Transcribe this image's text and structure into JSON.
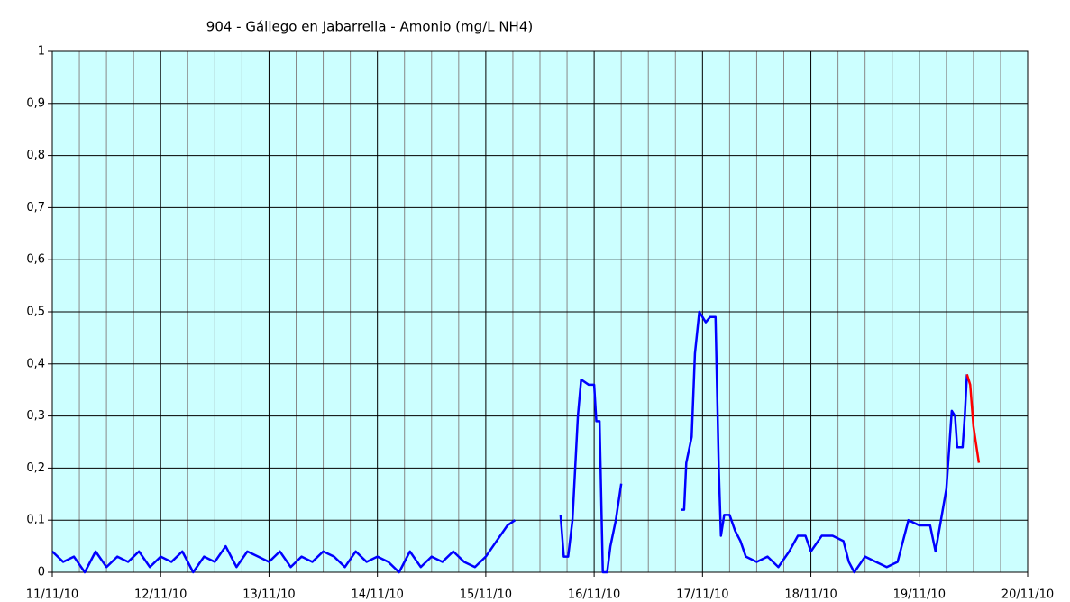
{
  "chart_data": {
    "type": "line",
    "title": "904 - Gállego en Jabarrella - Amonio (mg/L NH4)",
    "xlim": [
      0,
      9
    ],
    "xticks": [
      {
        "value": 0,
        "label": "11/11/10"
      },
      {
        "value": 1,
        "label": "12/11/10"
      },
      {
        "value": 2,
        "label": "13/11/10"
      },
      {
        "value": 3,
        "label": "14/11/10"
      },
      {
        "value": 4,
        "label": "15/11/10"
      },
      {
        "value": 5,
        "label": "16/11/10"
      },
      {
        "value": 6,
        "label": "17/11/10"
      },
      {
        "value": 7,
        "label": "18/11/10"
      },
      {
        "value": 8,
        "label": "19/11/10"
      },
      {
        "value": 9,
        "label": "20/11/10"
      }
    ],
    "ylim": [
      0,
      1
    ],
    "yticks": [
      0,
      {
        "value": 0.1,
        "label": "0,1"
      },
      {
        "value": 0.2,
        "label": "0,2"
      },
      {
        "value": 0.3,
        "label": "0,3"
      },
      {
        "value": 0.4,
        "label": "0,4"
      },
      {
        "value": 0.5,
        "label": "0,5"
      },
      {
        "value": 0.6,
        "label": "0,6"
      },
      {
        "value": 0.7,
        "label": "0,7"
      },
      {
        "value": 0.8,
        "label": "0,8"
      },
      {
        "value": 0.9,
        "label": "0,9"
      },
      1
    ],
    "grid": true,
    "background": "#ccffff",
    "series": [
      {
        "color": "#0000ff",
        "x": [
          0,
          0.1,
          0.2,
          0.3,
          0.4,
          0.5,
          0.6,
          0.7,
          0.8,
          0.9,
          1,
          1.1,
          1.2,
          1.3,
          1.4,
          1.5,
          1.6,
          1.7,
          1.8,
          1.9,
          2,
          2.1,
          2.2,
          2.3,
          2.4,
          2.5,
          2.6,
          2.7,
          2.8,
          2.9,
          3,
          3.1,
          3.2,
          3.3,
          3.4,
          3.5,
          3.6,
          3.7,
          3.8,
          3.9,
          4,
          4.1,
          4.2,
          4.27,
          4.3,
          4.5,
          4.69,
          4.72,
          4.76,
          4.8,
          4.85,
          4.88,
          4.95,
          5,
          5.02,
          5.05,
          5.08,
          5.12,
          5.15,
          5.2,
          5.25,
          5.5,
          5.8,
          5.83,
          5.85,
          5.9,
          5.93,
          5.97,
          6,
          6.03,
          6.07,
          6.12,
          6.15,
          6.17,
          6.2,
          6.25,
          6.3,
          6.35,
          6.4,
          6.5,
          6.6,
          6.7,
          6.8,
          6.88,
          6.95,
          7,
          7.1,
          7.2,
          7.3,
          7.35,
          7.4,
          7.5,
          7.6,
          7.7,
          7.8,
          7.85,
          7.9,
          8,
          8.1,
          8.15,
          8.2,
          8.25,
          8.3,
          8.33,
          8.35,
          8.4,
          8.42,
          8.44
        ],
        "values": [
          0.04,
          0.02,
          0.03,
          0,
          0.04,
          0.01,
          0.03,
          0.02,
          0.04,
          0.01,
          0.03,
          0.02,
          0.04,
          0,
          0.03,
          0.02,
          0.05,
          0.01,
          0.04,
          0.03,
          0.02,
          0.04,
          0.01,
          0.03,
          0.02,
          0.04,
          0.03,
          0.01,
          0.04,
          0.02,
          0.03,
          0.02,
          0,
          0.04,
          0.01,
          0.03,
          0.02,
          0.04,
          0.02,
          0.01,
          0.03,
          0.06,
          0.09,
          0.1,
          null,
          null,
          0.11,
          0.03,
          0.03,
          0.1,
          0.3,
          0.37,
          0.36,
          0.36,
          0.29,
          0.29,
          0,
          0,
          0.05,
          0.1,
          0.17,
          null,
          0.12,
          0.12,
          0.21,
          0.26,
          0.42,
          0.5,
          0.49,
          0.48,
          0.49,
          0.49,
          0.2,
          0.07,
          0.11,
          0.11,
          0.08,
          0.06,
          0.03,
          0.02,
          0.03,
          0.01,
          0.04,
          0.07,
          0.07,
          0.04,
          0.07,
          0.07,
          0.06,
          0.02,
          0,
          0.03,
          0.02,
          0.01,
          0.02,
          0.06,
          0.1,
          0.09,
          0.09,
          0.04,
          0.1,
          0.16,
          0.31,
          0.3,
          0.24,
          0.24,
          0.3,
          0.38
        ]
      },
      {
        "color": "#ff0000",
        "x": [
          8.44,
          8.47,
          8.5,
          8.55
        ],
        "values": [
          0.38,
          0.36,
          0.28,
          0.21
        ]
      }
    ]
  }
}
